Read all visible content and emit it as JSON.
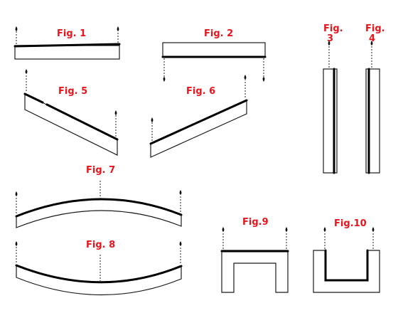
{
  "figures": {
    "fig1": "Fig. 1",
    "fig2": "Fig. 2",
    "fig3_top": "Fig.",
    "fig3_bottom": "3",
    "fig4_top": "Fig.",
    "fig4_bottom": "4",
    "fig5": "Fig. 5",
    "fig6": "Fig. 6",
    "fig7": "Fig. 7",
    "fig8": "Fig. 8",
    "fig9": "Fig.9",
    "fig10": "Fig.10"
  },
  "colors": {
    "label": "#e8141b",
    "outline": "#1a1a1a",
    "background": "#ffffff"
  }
}
